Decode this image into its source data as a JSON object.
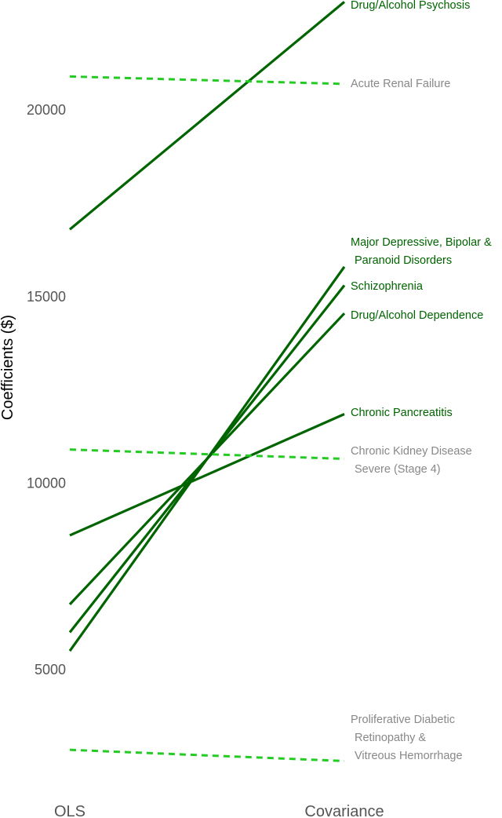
{
  "chart_data": {
    "type": "line",
    "subtype": "slope",
    "categories": [
      "OLS",
      "Covariance"
    ],
    "ylabel": "Coefficients ($)",
    "y_ticks": [
      5000,
      10000,
      15000,
      20000
    ],
    "ylim": [
      1750,
      23250
    ],
    "grid": false,
    "legend": "none",
    "series": [
      {
        "name": "Drug/Alcohol Psychosis",
        "label_lines": [
          "Drug/Alcohol Psychosis"
        ],
        "values": [
          16800,
          22900
        ],
        "style": "solid",
        "color": "#006400"
      },
      {
        "name": "Acute Renal Failure",
        "label_lines": [
          "Acute Renal Failure"
        ],
        "values": [
          20900,
          20700
        ],
        "style": "dashed",
        "color": "#22cc22"
      },
      {
        "name": "Major Depressive, Bipolar & Paranoid Disorders",
        "label_lines": [
          "Major Depressive, Bipolar &",
          "Paranoid Disorders"
        ],
        "values": [
          5500,
          15800
        ],
        "style": "solid",
        "color": "#006400"
      },
      {
        "name": "Schizophrenia",
        "label_lines": [
          "Schizophrenia"
        ],
        "values": [
          6000,
          15300
        ],
        "style": "solid",
        "color": "#006400"
      },
      {
        "name": "Drug/Alcohol Dependence",
        "label_lines": [
          "Drug/Alcohol Dependence"
        ],
        "values": [
          6750,
          14550
        ],
        "style": "solid",
        "color": "#006400"
      },
      {
        "name": "Chronic Pancreatitis",
        "label_lines": [
          "Chronic Pancreatitis"
        ],
        "values": [
          8600,
          11850
        ],
        "style": "solid",
        "color": "#006400"
      },
      {
        "name": "Chronic Kidney Disease Severe (Stage 4)",
        "label_lines": [
          "Chronic Kidney Disease",
          "Severe (Stage 4)"
        ],
        "values": [
          10900,
          10650
        ],
        "style": "dashed",
        "color": "#22cc22"
      },
      {
        "name": "Proliferative Diabetic Retinopathy & Vitreous Hemorrhage",
        "label_lines": [
          "Proliferative Diabetic",
          "Retinopathy &",
          "Vitreous Hemorrhage"
        ],
        "values": [
          2850,
          2550
        ],
        "style": "dashed",
        "color": "#22cc22"
      }
    ],
    "label_colors": {
      "solid": "#006400",
      "dashed": "#888888"
    }
  }
}
